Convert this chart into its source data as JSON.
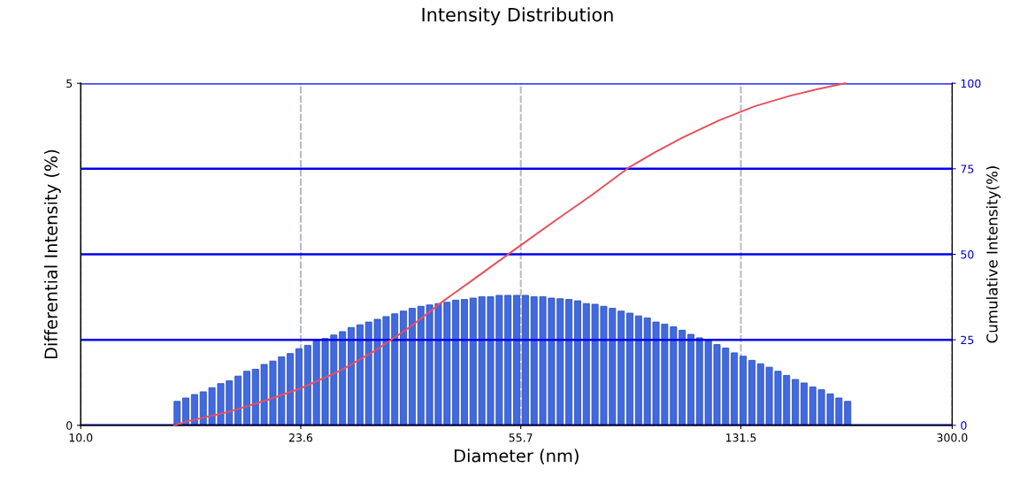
{
  "chart_data": {
    "type": "bar",
    "title": "Intensity Distribution",
    "xlabel": "Diameter (nm)",
    "ylabel": "Differential Intensity (%)",
    "y2label": "Cumulative Intensity(%)",
    "log": "x",
    "grid": true,
    "xlim": [
      10,
      300
    ],
    "xticks": [
      {
        "value": 10,
        "label": "10.0"
      },
      23.6,
      55.7,
      131.5,
      {
        "value": 300,
        "label": "300.0"
      }
    ],
    "ylim": [
      0,
      5
    ],
    "yticks": [
      0,
      5
    ],
    "y2lim": [
      0,
      100
    ],
    "y2ticks": [
      0,
      25,
      50,
      75,
      100
    ],
    "x": [
      14.57,
      15.07,
      15.59,
      16.13,
      16.69,
      17.27,
      17.86,
      18.48,
      19.12,
      19.78,
      20.46,
      21.17,
      21.9,
      22.66,
      23.44,
      24.25,
      25.09,
      25.96,
      26.85,
      27.78,
      28.74,
      29.74,
      30.76,
      31.83,
      32.93,
      34.06,
      35.24,
      36.46,
      37.72,
      39.02,
      40.37,
      41.77,
      43.21,
      44.7,
      46.25,
      47.85,
      49.5,
      51.21,
      52.98,
      54.81,
      56.71,
      58.67,
      60.7,
      62.8,
      64.97,
      67.22,
      69.54,
      71.94,
      74.43,
      77.0,
      79.66,
      82.42,
      85.27,
      88.21,
      91.26,
      94.42,
      97.68,
      101.1,
      104.6,
      108.2,
      111.9,
      115.8,
      119.8,
      123.9,
      128.2,
      132.7,
      137.3,
      142.0,
      146.9,
      152.0,
      157.2,
      162.7,
      168.3,
      174.1,
      180.1,
      186.4,
      192.8,
      199.5
    ],
    "series": [
      {
        "color": "#4169e1",
        "values": [
          0.35,
          0.4,
          0.45,
          0.49,
          0.55,
          0.61,
          0.65,
          0.72,
          0.79,
          0.82,
          0.89,
          0.94,
          1.0,
          1.05,
          1.12,
          1.17,
          1.24,
          1.27,
          1.32,
          1.37,
          1.43,
          1.47,
          1.51,
          1.55,
          1.59,
          1.63,
          1.67,
          1.71,
          1.74,
          1.76,
          1.78,
          1.8,
          1.83,
          1.84,
          1.86,
          1.88,
          1.88,
          1.9,
          1.9,
          1.9,
          1.9,
          1.88,
          1.88,
          1.86,
          1.85,
          1.84,
          1.82,
          1.78,
          1.77,
          1.74,
          1.71,
          1.67,
          1.64,
          1.6,
          1.57,
          1.51,
          1.48,
          1.44,
          1.39,
          1.33,
          1.28,
          1.24,
          1.18,
          1.13,
          1.06,
          1.01,
          0.95,
          0.9,
          0.85,
          0.79,
          0.73,
          0.67,
          0.62,
          0.56,
          0.52,
          0.46,
          0.4,
          0.35
        ]
      },
      {
        "type": "line",
        "axis": "y2",
        "color": "#e8505b",
        "x": [
          14.4,
          15.1,
          17.7,
          20.7,
          23.5,
          27.5,
          31.6,
          36.4,
          41.2,
          46.6,
          54.6,
          64.0,
          73.6,
          84.8,
          94.2,
          104.7,
          120.5,
          138.8,
          159.7,
          177.5,
          197.3
        ],
        "values": [
          0,
          1.1,
          3.8,
          7.4,
          10.7,
          15.9,
          21.9,
          29.1,
          36.4,
          43.0,
          51.6,
          60.1,
          67.4,
          75.3,
          79.9,
          84.1,
          89.1,
          93.3,
          96.4,
          98.3,
          100
        ]
      }
    ]
  }
}
